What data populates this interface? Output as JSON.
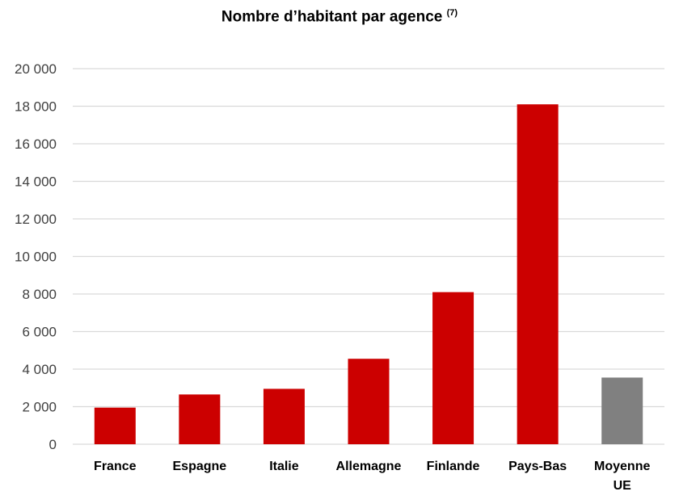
{
  "chart_data": {
    "type": "bar",
    "title": "Nombre d’habitant par agence",
    "title_superscript": "(7)",
    "categories": [
      "France",
      "Espagne",
      "Italie",
      "Allemagne",
      "Finlande",
      "Pays-Bas",
      "Moyenne UE"
    ],
    "category_labels": [
      [
        "France"
      ],
      [
        "Espagne"
      ],
      [
        "Italie"
      ],
      [
        "Allemagne"
      ],
      [
        "Finlande"
      ],
      [
        "Pays-Bas"
      ],
      [
        "Moyenne",
        "UE"
      ]
    ],
    "values": [
      1950,
      2650,
      2950,
      4550,
      8100,
      18100,
      3550
    ],
    "bar_colors": [
      "#cc0000",
      "#cc0000",
      "#cc0000",
      "#cc0000",
      "#cc0000",
      "#cc0000",
      "#808080"
    ],
    "xlabel": "",
    "ylabel": "",
    "ylim": [
      0,
      20000
    ],
    "yticks": [
      0,
      2000,
      4000,
      6000,
      8000,
      10000,
      12000,
      14000,
      16000,
      18000,
      20000
    ],
    "ytick_labels": [
      "0",
      "2 000",
      "4 000",
      "6 000",
      "8 000",
      "10 000",
      "12 000",
      "14 000",
      "16 000",
      "18 000",
      "20 000"
    ],
    "grid": true,
    "legend": "none"
  }
}
